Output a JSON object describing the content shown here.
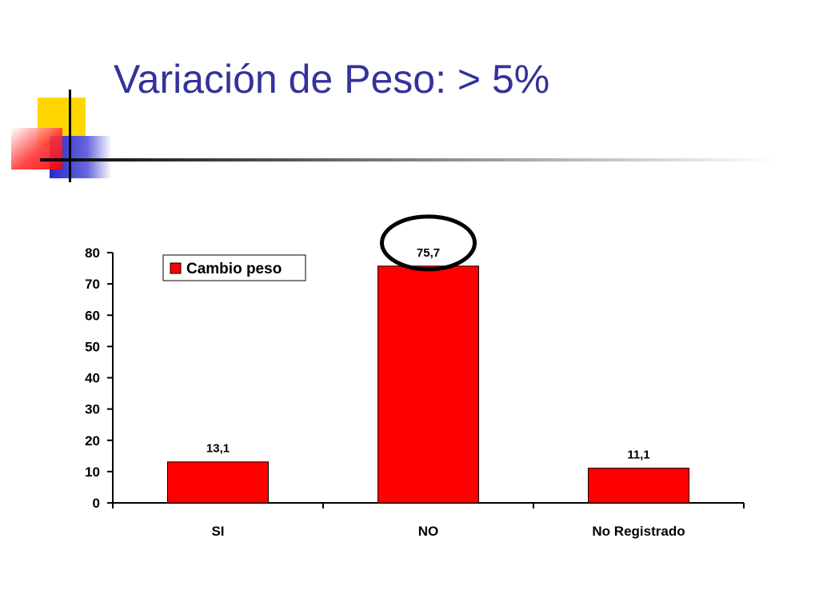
{
  "slide": {
    "title": "Variación de Peso: > 5%"
  },
  "colors": {
    "title": "#333399",
    "bar": "#ff0000",
    "highlight": "#000000",
    "deco_yellow": "#ffd700",
    "deco_red": "#ff3333",
    "deco_blue": "#3333cc"
  },
  "chart_data": {
    "type": "bar",
    "categories": [
      "SI",
      "NO",
      "No Registrado"
    ],
    "series": [
      {
        "name": "Cambio peso",
        "values": [
          13.1,
          75.7,
          11.1
        ]
      }
    ],
    "data_labels": [
      "13,1",
      "75,7",
      "11,1"
    ],
    "yticks": [
      "0",
      "10",
      "20",
      "30",
      "40",
      "50",
      "60",
      "70",
      "80"
    ],
    "ylim": [
      0,
      80
    ],
    "grid": false,
    "legend": "top-left",
    "highlighted_category": "NO"
  }
}
